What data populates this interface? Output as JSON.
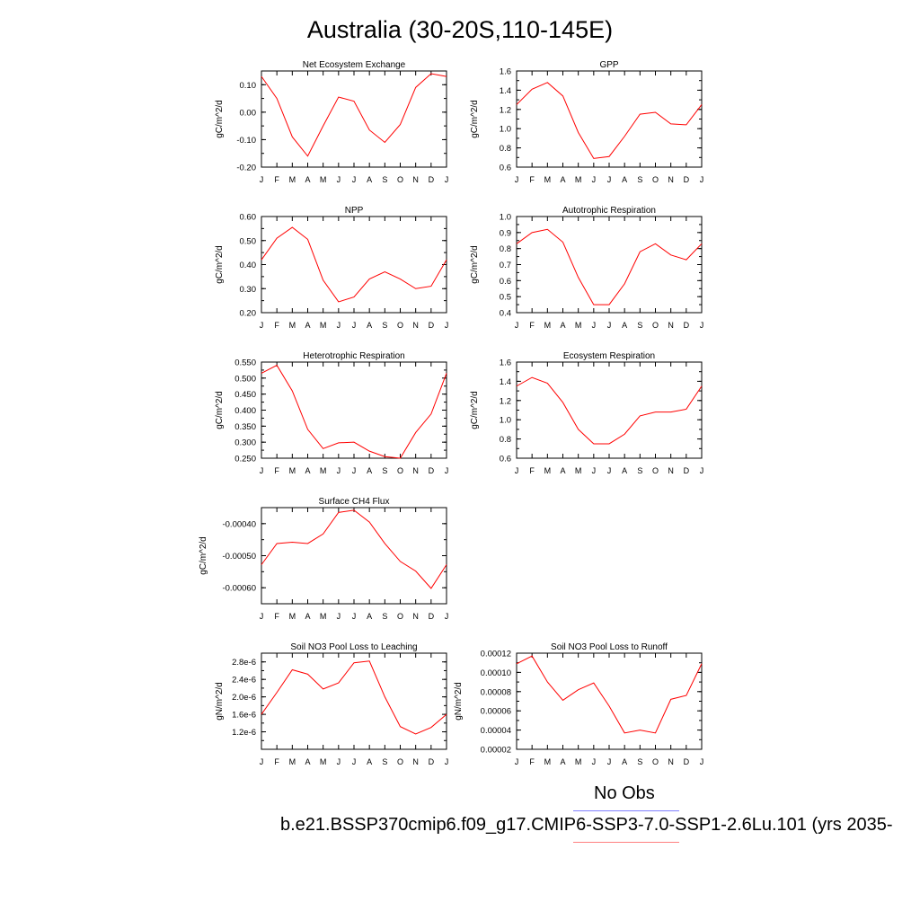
{
  "title": "Australia (30-20S,110-145E)",
  "legend": {
    "label": "No Obs",
    "obs_color": "#8080ff",
    "model_color": "#ff8080"
  },
  "run_label": "b.e21.BSSP370cmip6.f09_g17.CMIP6-SSP3-7.0-SSP1-2.6Lu.101 (yrs 2035-",
  "line_color": "#ff0000",
  "chart_data": [
    {
      "type": "line",
      "title": "Net Ecosystem Exchange",
      "ylabel": "gC/m^2/d",
      "xlabel": "",
      "ylim": [
        -0.2,
        0.15
      ],
      "yticks": [
        -0.2,
        -0.1,
        0.0,
        0.1
      ],
      "ytick_labels": [
        "-0.20",
        "-0.10",
        "0.00",
        "0.10"
      ],
      "categories": [
        "J",
        "F",
        "M",
        "A",
        "M",
        "J",
        "J",
        "A",
        "S",
        "O",
        "N",
        "D",
        "J"
      ],
      "values": [
        0.13,
        0.05,
        -0.09,
        -0.16,
        -0.05,
        0.055,
        0.04,
        -0.065,
        -0.11,
        -0.045,
        0.09,
        0.14,
        0.13
      ]
    },
    {
      "type": "line",
      "title": "GPP",
      "ylabel": "gC/m^2/d",
      "xlabel": "",
      "ylim": [
        0.6,
        1.6
      ],
      "yticks": [
        0.6,
        0.8,
        1.0,
        1.2,
        1.4,
        1.6
      ],
      "ytick_labels": [
        "0.6",
        "0.8",
        "1.0",
        "1.2",
        "1.4",
        "1.6"
      ],
      "categories": [
        "J",
        "F",
        "M",
        "A",
        "M",
        "J",
        "J",
        "A",
        "S",
        "O",
        "N",
        "D",
        "J"
      ],
      "values": [
        1.25,
        1.41,
        1.48,
        1.34,
        0.96,
        0.69,
        0.71,
        0.92,
        1.15,
        1.17,
        1.05,
        1.04,
        1.25
      ]
    },
    {
      "type": "line",
      "title": "NPP",
      "ylabel": "gC/m^2/d",
      "xlabel": "",
      "ylim": [
        0.2,
        0.6
      ],
      "yticks": [
        0.2,
        0.3,
        0.4,
        0.5,
        0.6
      ],
      "ytick_labels": [
        "0.20",
        "0.30",
        "0.40",
        "0.50",
        "0.60"
      ],
      "categories": [
        "J",
        "F",
        "M",
        "A",
        "M",
        "J",
        "J",
        "A",
        "S",
        "O",
        "N",
        "D",
        "J"
      ],
      "values": [
        0.42,
        0.51,
        0.555,
        0.505,
        0.335,
        0.245,
        0.265,
        0.34,
        0.37,
        0.34,
        0.3,
        0.31,
        0.42
      ]
    },
    {
      "type": "line",
      "title": "Autotrophic Respiration",
      "ylabel": "gC/m^2/d",
      "xlabel": "",
      "ylim": [
        0.4,
        1.0
      ],
      "yticks": [
        0.4,
        0.5,
        0.6,
        0.7,
        0.8,
        0.9,
        1.0
      ],
      "ytick_labels": [
        "0.4",
        "0.5",
        "0.6",
        "0.7",
        "0.8",
        "0.9",
        "1.0"
      ],
      "categories": [
        "J",
        "F",
        "M",
        "A",
        "M",
        "J",
        "J",
        "A",
        "S",
        "O",
        "N",
        "D",
        "J"
      ],
      "values": [
        0.83,
        0.9,
        0.92,
        0.84,
        0.62,
        0.45,
        0.45,
        0.58,
        0.78,
        0.83,
        0.76,
        0.73,
        0.83
      ]
    },
    {
      "type": "line",
      "title": "Heterotrophic Respiration",
      "ylabel": "gC/m^2/d",
      "xlabel": "",
      "ylim": [
        0.25,
        0.55
      ],
      "yticks": [
        0.25,
        0.3,
        0.35,
        0.4,
        0.45,
        0.5,
        0.55
      ],
      "ytick_labels": [
        "0.250",
        "0.300",
        "0.350",
        "0.400",
        "0.450",
        "0.500",
        "0.550"
      ],
      "categories": [
        "J",
        "F",
        "M",
        "A",
        "M",
        "J",
        "J",
        "A",
        "S",
        "O",
        "N",
        "D",
        "J"
      ],
      "values": [
        0.515,
        0.54,
        0.46,
        0.34,
        0.28,
        0.298,
        0.3,
        0.272,
        0.255,
        0.25,
        0.33,
        0.388,
        0.515
      ]
    },
    {
      "type": "line",
      "title": "Ecosystem Respiration",
      "ylabel": "gC/m^2/d",
      "xlabel": "",
      "ylim": [
        0.6,
        1.6
      ],
      "yticks": [
        0.6,
        0.8,
        1.0,
        1.2,
        1.4,
        1.6
      ],
      "ytick_labels": [
        "0.6",
        "0.8",
        "1.0",
        "1.2",
        "1.4",
        "1.6"
      ],
      "categories": [
        "J",
        "F",
        "M",
        "A",
        "M",
        "J",
        "J",
        "A",
        "S",
        "O",
        "N",
        "D",
        "J"
      ],
      "values": [
        1.35,
        1.44,
        1.38,
        1.18,
        0.9,
        0.75,
        0.75,
        0.85,
        1.04,
        1.08,
        1.08,
        1.11,
        1.35
      ]
    },
    {
      "type": "line",
      "title": "Surface CH4 Flux",
      "ylabel": "gC/m^2/d",
      "xlabel": "",
      "ylim": [
        -0.00065,
        -0.00035
      ],
      "yticks": [
        -0.0006,
        -0.0005,
        -0.0004
      ],
      "ytick_labels": [
        "-0.00060",
        "-0.00050",
        "-0.00040"
      ],
      "categories": [
        "J",
        "F",
        "M",
        "A",
        "M",
        "J",
        "J",
        "A",
        "S",
        "O",
        "N",
        "D",
        "J"
      ],
      "values": [
        -0.000528,
        -0.000462,
        -0.000458,
        -0.000462,
        -0.000432,
        -0.000365,
        -0.000358,
        -0.000395,
        -0.000462,
        -0.000518,
        -0.000548,
        -0.000602,
        -0.000528
      ]
    },
    {
      "type": "line",
      "title": "Soil NO3 Pool Loss to Leaching",
      "ylabel": "gN/m^2/d",
      "xlabel": "",
      "ylim": [
        8e-07,
        3e-06
      ],
      "yticks": [
        1.2e-06,
        1.6e-06,
        2e-06,
        2.4e-06,
        2.8e-06
      ],
      "ytick_labels": [
        "1.2e-6",
        "1.6e-6",
        "2.0e-6",
        "2.4e-6",
        "2.8e-6"
      ],
      "categories": [
        "J",
        "F",
        "M",
        "A",
        "M",
        "J",
        "J",
        "A",
        "S",
        "O",
        "N",
        "D",
        "J"
      ],
      "values": [
        1.6e-06,
        2.1e-06,
        2.62e-06,
        2.52e-06,
        2.18e-06,
        2.32e-06,
        2.78e-06,
        2.82e-06,
        2e-06,
        1.32e-06,
        1.15e-06,
        1.3e-06,
        1.6e-06
      ]
    },
    {
      "type": "line",
      "title": "Soil NO3 Pool Loss to Runoff",
      "ylabel": "gN/m^2/d",
      "xlabel": "",
      "ylim": [
        2e-05,
        0.00012
      ],
      "yticks": [
        2e-05,
        4e-05,
        6e-05,
        8e-05,
        0.0001,
        0.00012
      ],
      "ytick_labels": [
        "0.00002",
        "0.00004",
        "0.00006",
        "0.00008",
        "0.00010",
        "0.00012"
      ],
      "categories": [
        "J",
        "F",
        "M",
        "A",
        "M",
        "J",
        "J",
        "A",
        "S",
        "O",
        "N",
        "D",
        "J"
      ],
      "values": [
        0.000109,
        0.000117,
        9e-05,
        7.1e-05,
        8.2e-05,
        8.9e-05,
        6.5e-05,
        3.7e-05,
        4e-05,
        3.7e-05,
        7.2e-05,
        7.6e-05,
        0.000109
      ]
    }
  ]
}
